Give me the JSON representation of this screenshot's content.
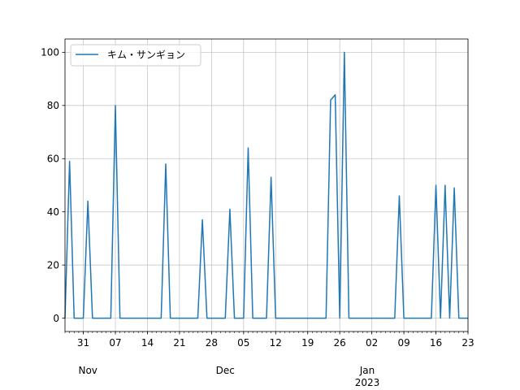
{
  "chart_data": {
    "type": "line",
    "title": "",
    "xlabel": "",
    "ylabel": "",
    "xlim": [
      "2022-10-27",
      "2023-01-23"
    ],
    "ylim": [
      -5,
      105
    ],
    "grid": true,
    "legend_position": "upper-left",
    "y_ticks": [
      0,
      20,
      40,
      60,
      80,
      100
    ],
    "x_day_ticks": [
      {
        "date": "2022-10-31",
        "label": "31"
      },
      {
        "date": "2022-11-07",
        "label": "07"
      },
      {
        "date": "2022-11-14",
        "label": "14"
      },
      {
        "date": "2022-11-21",
        "label": "21"
      },
      {
        "date": "2022-11-28",
        "label": "28"
      },
      {
        "date": "2022-12-05",
        "label": "05"
      },
      {
        "date": "2022-12-12",
        "label": "12"
      },
      {
        "date": "2022-12-19",
        "label": "19"
      },
      {
        "date": "2022-12-26",
        "label": "26"
      },
      {
        "date": "2023-01-02",
        "label": "02"
      },
      {
        "date": "2023-01-09",
        "label": "09"
      },
      {
        "date": "2023-01-16",
        "label": "16"
      },
      {
        "date": "2023-01-23",
        "label": "23"
      }
    ],
    "x_month_labels": [
      {
        "date": "2022-11-01",
        "label": "Nov"
      },
      {
        "date": "2022-12-01",
        "label": "Dec"
      },
      {
        "date": "2023-01-01",
        "label": "Jan\n2023"
      }
    ],
    "series": [
      {
        "name": "キム・サンギョン",
        "color": "#1f77b4",
        "x": [
          "2022-10-27",
          "2022-10-28",
          "2022-10-29",
          "2022-10-30",
          "2022-10-31",
          "2022-11-01",
          "2022-11-02",
          "2022-11-03",
          "2022-11-04",
          "2022-11-05",
          "2022-11-06",
          "2022-11-07",
          "2022-11-08",
          "2022-11-09",
          "2022-11-10",
          "2022-11-11",
          "2022-11-12",
          "2022-11-13",
          "2022-11-14",
          "2022-11-15",
          "2022-11-16",
          "2022-11-17",
          "2022-11-18",
          "2022-11-19",
          "2022-11-20",
          "2022-11-21",
          "2022-11-22",
          "2022-11-23",
          "2022-11-24",
          "2022-11-25",
          "2022-11-26",
          "2022-11-27",
          "2022-11-28",
          "2022-11-29",
          "2022-11-30",
          "2022-12-01",
          "2022-12-02",
          "2022-12-03",
          "2022-12-04",
          "2022-12-05",
          "2022-12-06",
          "2022-12-07",
          "2022-12-08",
          "2022-12-09",
          "2022-12-10",
          "2022-12-11",
          "2022-12-12",
          "2022-12-13",
          "2022-12-14",
          "2022-12-15",
          "2022-12-16",
          "2022-12-17",
          "2022-12-18",
          "2022-12-19",
          "2022-12-20",
          "2022-12-21",
          "2022-12-22",
          "2022-12-23",
          "2022-12-24",
          "2022-12-25",
          "2022-12-26",
          "2022-12-27",
          "2022-12-28",
          "2022-12-29",
          "2022-12-30",
          "2022-12-31",
          "2023-01-01",
          "2023-01-02",
          "2023-01-03",
          "2023-01-04",
          "2023-01-05",
          "2023-01-06",
          "2023-01-07",
          "2023-01-08",
          "2023-01-09",
          "2023-01-10",
          "2023-01-11",
          "2023-01-12",
          "2023-01-13",
          "2023-01-14",
          "2023-01-15",
          "2023-01-16",
          "2023-01-17",
          "2023-01-18",
          "2023-01-19",
          "2023-01-20",
          "2023-01-21",
          "2023-01-22",
          "2023-01-23"
        ],
        "y": [
          0,
          59,
          0,
          0,
          0,
          44,
          0,
          0,
          0,
          0,
          0,
          80,
          0,
          0,
          0,
          0,
          0,
          0,
          0,
          0,
          0,
          0,
          58,
          0,
          0,
          0,
          0,
          0,
          0,
          0,
          37,
          0,
          0,
          0,
          0,
          0,
          41,
          0,
          0,
          0,
          64,
          0,
          0,
          0,
          0,
          53,
          0,
          0,
          0,
          0,
          0,
          0,
          0,
          0,
          0,
          0,
          0,
          0,
          82,
          84,
          0,
          100,
          0,
          0,
          0,
          0,
          0,
          0,
          0,
          0,
          0,
          0,
          0,
          46,
          0,
          0,
          0,
          0,
          0,
          0,
          0,
          50,
          0,
          50,
          0,
          49,
          0,
          0,
          0
        ]
      }
    ]
  }
}
